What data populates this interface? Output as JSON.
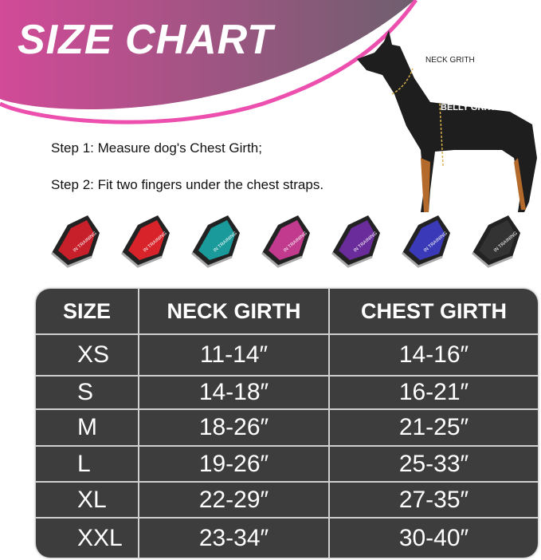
{
  "title": "SIZE CHART",
  "steps": [
    "Step 1: Measure dog's Chest Girth;",
    "Step 2: Fit two fingers under the chest straps."
  ],
  "dog_labels": {
    "neck": "NECK GRITH",
    "belly": "BELLY GRITH"
  },
  "harness_colors": [
    "#c8202a",
    "#d8232a",
    "#1a9a9a",
    "#c23a8e",
    "#6a2c9a",
    "#3a3ab8",
    "#333333"
  ],
  "harness_text": "IN TRAINING",
  "colors": {
    "banner_start": "#d24a98",
    "banner_end": "#6e5f6e",
    "accent": "#ec4fae",
    "table_bg": "#3d3d3d"
  },
  "table": {
    "headers": [
      "SIZE",
      "NECK GIRTH",
      "CHEST GIRTH"
    ],
    "rows": [
      [
        "XS",
        "11-14″",
        "14-16″"
      ],
      [
        "S",
        "14-18″",
        "16-21″"
      ],
      [
        "M",
        "18-26″",
        "21-25″"
      ],
      [
        "L",
        "19-26″",
        "25-33″"
      ],
      [
        "XL",
        "22-29″",
        "27-35″"
      ],
      [
        "XXL",
        "23-34″",
        "30-40″"
      ]
    ]
  }
}
